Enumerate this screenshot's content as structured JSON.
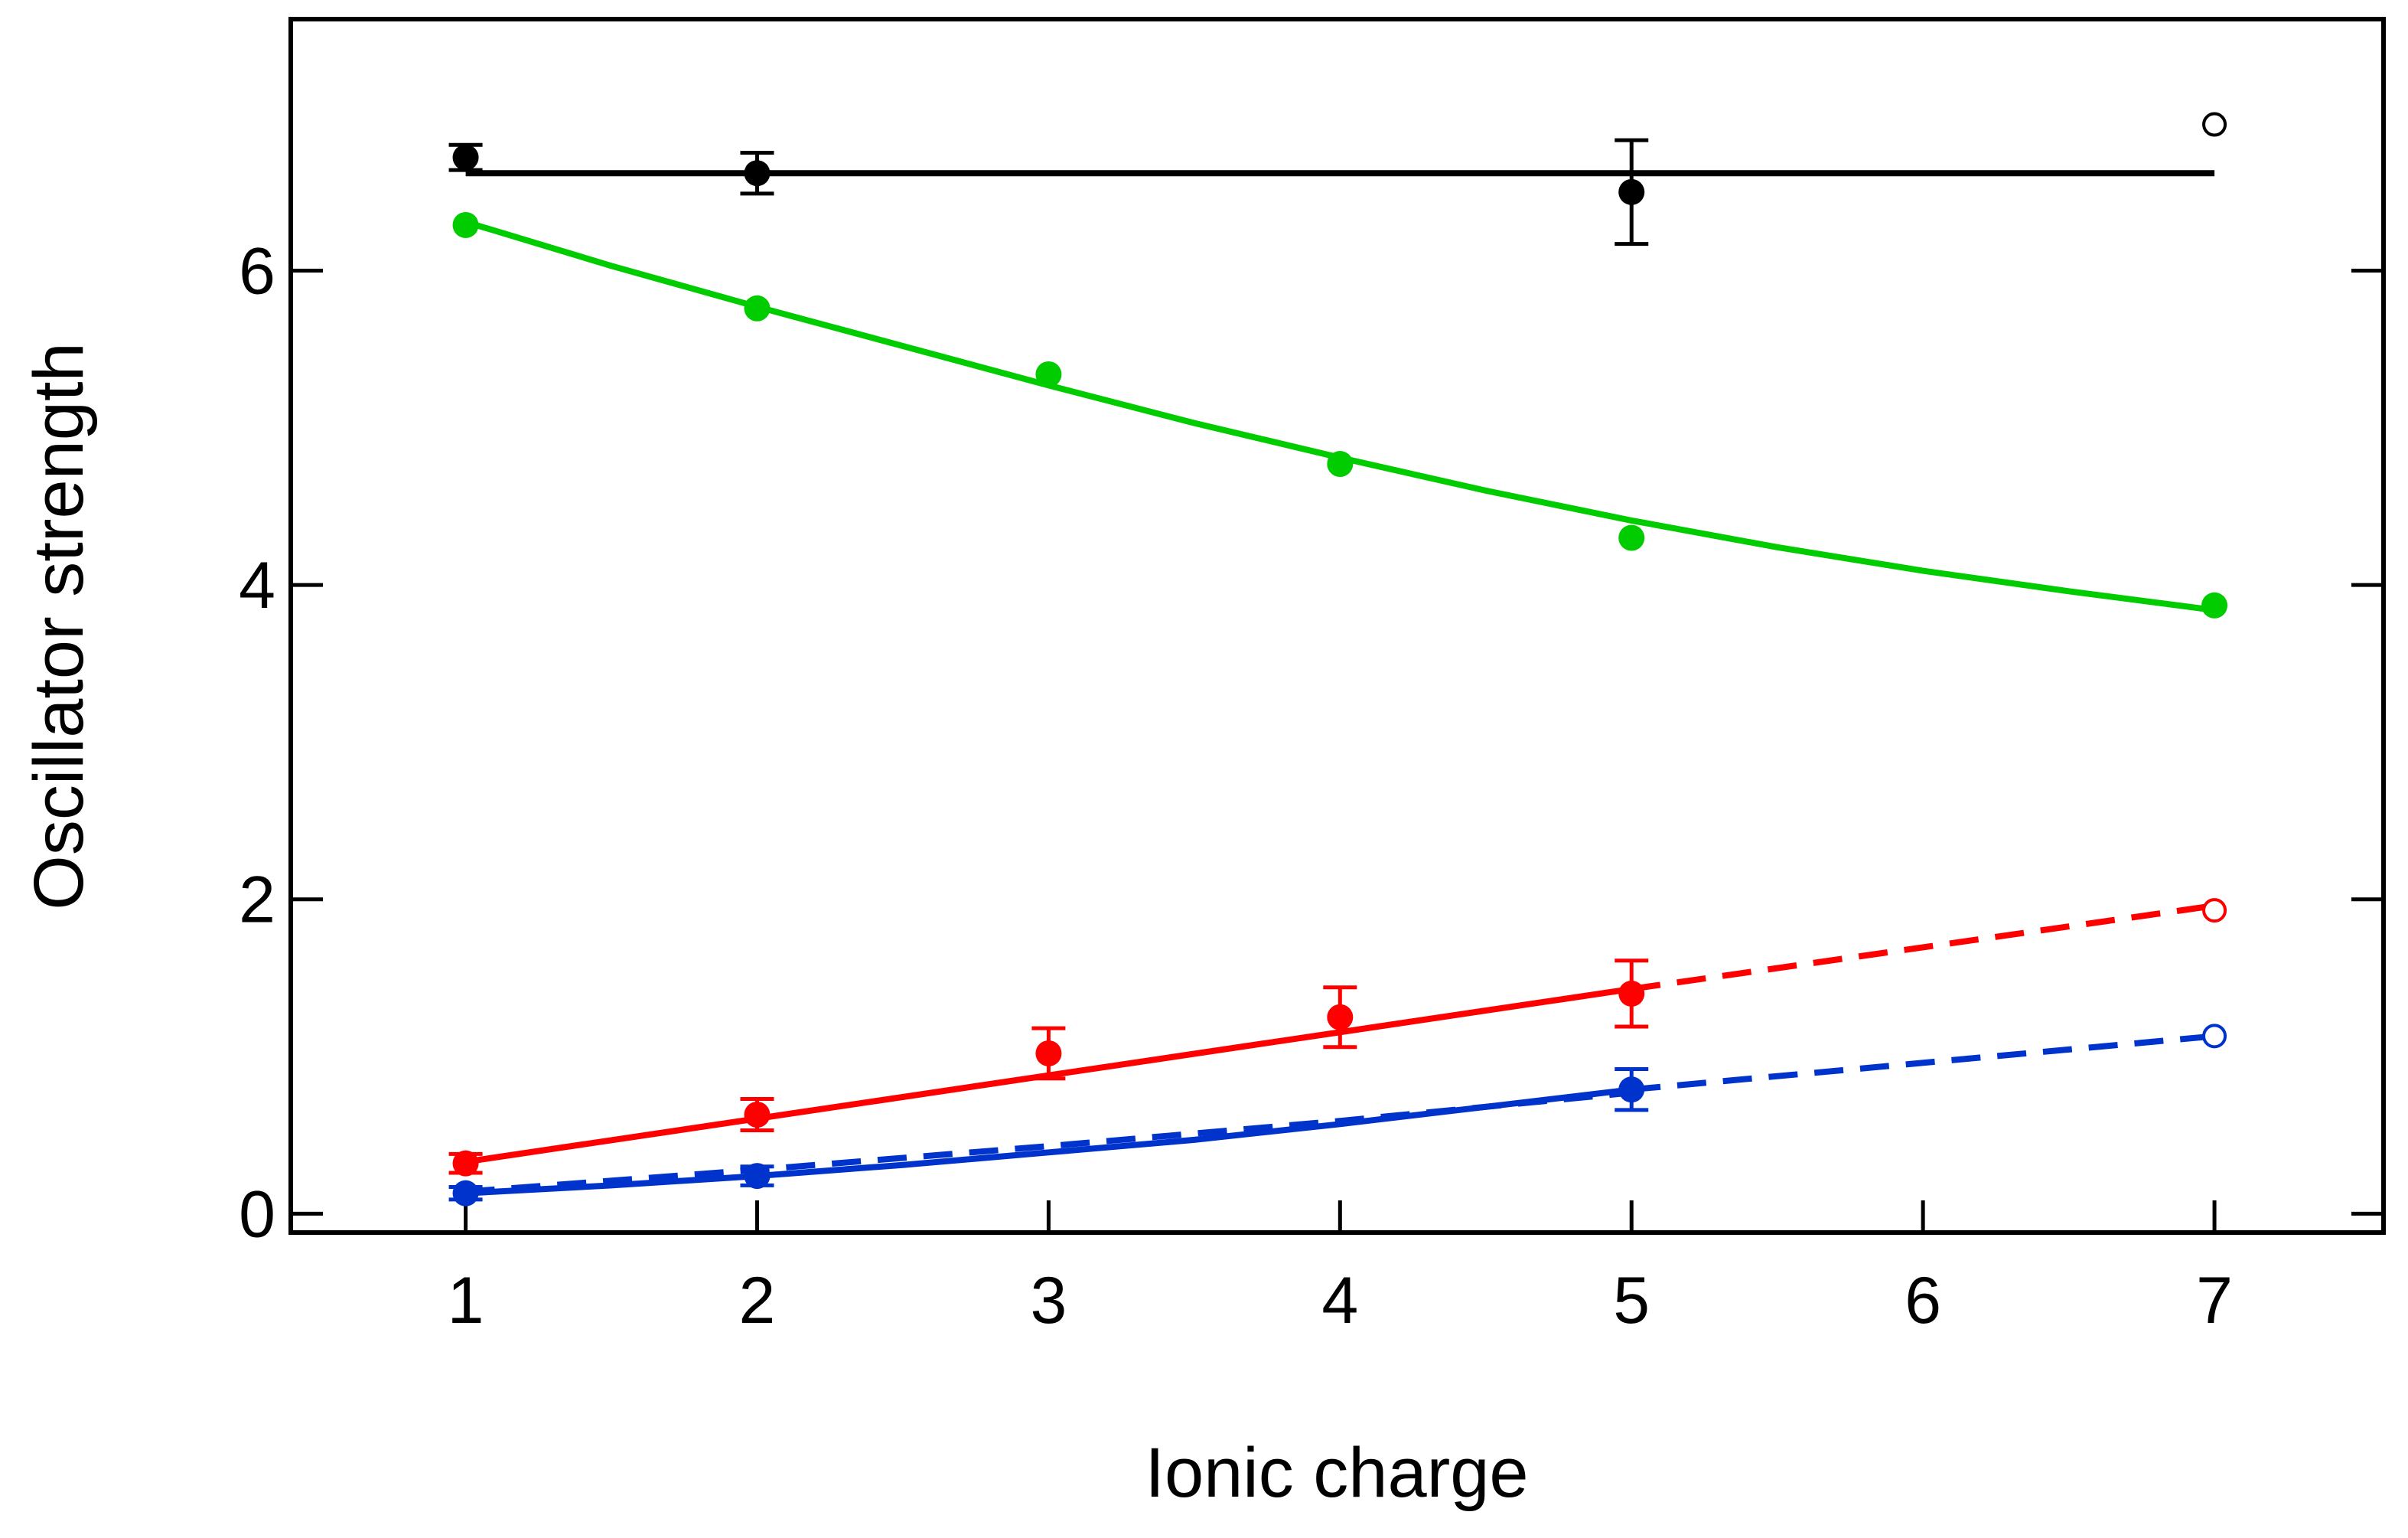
{
  "chart_data": {
    "type": "scatter",
    "title": "",
    "xlabel": "Ionic charge",
    "ylabel": "Oscillator strength",
    "xlim": [
      0.4,
      7.58
    ],
    "ylim": [
      -0.12,
      7.6
    ],
    "xticks": [
      1,
      2,
      3,
      4,
      5,
      6,
      7
    ],
    "yticks": [
      0,
      2,
      4,
      6
    ],
    "xtick_labels": [
      "1",
      "2",
      "3",
      "4",
      "5",
      "6",
      "7"
    ],
    "ytick_labels": [
      "0",
      "2",
      "4",
      "6"
    ],
    "grid": false,
    "legend": "none",
    "series": [
      {
        "name": "black",
        "color": "#000000",
        "points": [
          {
            "x": 1,
            "y": 6.72,
            "err": 0.08
          },
          {
            "x": 2,
            "y": 6.62,
            "err": 0.13
          },
          {
            "x": 5,
            "y": 6.5,
            "err": 0.33
          }
        ],
        "open_points": [
          {
            "x": 7,
            "y": 6.93
          }
        ],
        "fit": {
          "style": "solid",
          "x": [
            1,
            7
          ],
          "y": [
            6.62,
            6.62
          ]
        }
      },
      {
        "name": "green",
        "color": "#00cc00",
        "points": [
          {
            "x": 1,
            "y": 6.29
          },
          {
            "x": 2,
            "y": 5.76
          },
          {
            "x": 3,
            "y": 5.34
          },
          {
            "x": 4,
            "y": 4.77
          },
          {
            "x": 5,
            "y": 4.3
          },
          {
            "x": 7,
            "y": 3.87
          }
        ],
        "fit": {
          "style": "solid",
          "x": [
            1,
            1.5,
            2,
            2.5,
            3,
            3.5,
            4,
            4.5,
            5,
            5.5,
            6,
            6.5,
            7
          ],
          "y": [
            6.31,
            6.03,
            5.77,
            5.52,
            5.27,
            5.03,
            4.81,
            4.6,
            4.41,
            4.24,
            4.09,
            3.96,
            3.84
          ]
        }
      },
      {
        "name": "red",
        "color": "#ff0000",
        "points": [
          {
            "x": 1,
            "y": 0.32,
            "err": 0.06
          },
          {
            "x": 2,
            "y": 0.63,
            "err": 0.1
          },
          {
            "x": 3,
            "y": 1.02,
            "err": 0.16
          },
          {
            "x": 4,
            "y": 1.25,
            "err": 0.19
          },
          {
            "x": 5,
            "y": 1.4,
            "err": 0.21
          }
        ],
        "open_points": [
          {
            "x": 7,
            "y": 1.93
          }
        ],
        "fit": {
          "style": "solid",
          "x": [
            1,
            5
          ],
          "y": [
            0.33,
            1.43
          ]
        },
        "extrapolation": {
          "style": "dashed",
          "x": [
            5,
            7
          ],
          "y": [
            1.43,
            1.96
          ]
        }
      },
      {
        "name": "blue",
        "color": "#0033cc",
        "points": [
          {
            "x": 1,
            "y": 0.13,
            "err": 0.04
          },
          {
            "x": 2,
            "y": 0.24,
            "err": 0.06
          },
          {
            "x": 5,
            "y": 0.79,
            "err": 0.13
          }
        ],
        "open_points": [
          {
            "x": 7,
            "y": 1.13
          }
        ],
        "fit": {
          "style": "solid",
          "x": [
            1,
            1.5,
            2,
            2.5,
            3,
            3.5,
            4,
            4.5,
            5
          ],
          "y": [
            0.13,
            0.18,
            0.24,
            0.31,
            0.39,
            0.47,
            0.57,
            0.68,
            0.79
          ]
        },
        "model": {
          "style": "dashed",
          "x": [
            1,
            2,
            3,
            4,
            5
          ],
          "y": [
            0.14,
            0.28,
            0.43,
            0.59,
            0.77
          ]
        },
        "extrapolation": {
          "style": "dashed",
          "x": [
            5,
            7
          ],
          "y": [
            0.79,
            1.13
          ]
        }
      }
    ]
  }
}
